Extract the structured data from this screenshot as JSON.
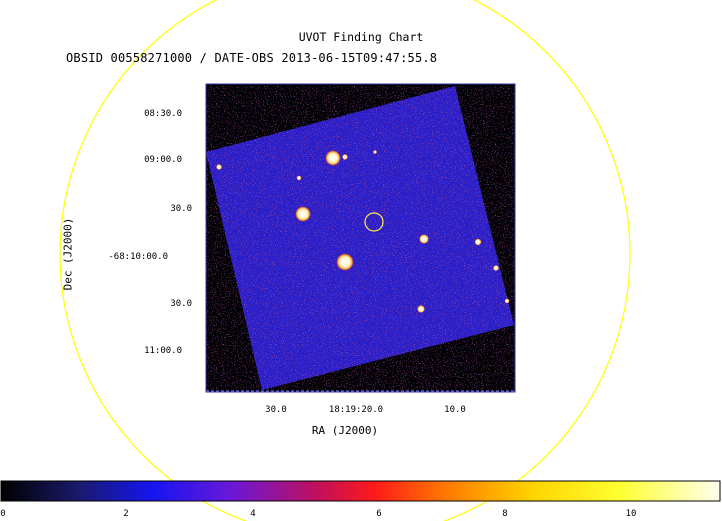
{
  "figure": {
    "title": "UVOT Finding Chart",
    "subtitle": "OBSID 00558271000 / DATE-OBS 2013-06-15T09:47:55.8",
    "ylabel": "Dec (J2000)",
    "xlabel": "RA (J2000)",
    "y_ticks": [
      "08:30.0",
      "09:00.0",
      "30.0",
      "-68:10:00.0",
      "30.0",
      "11:00.0"
    ],
    "x_ticks": [
      "30.0",
      "18:19:20.0",
      "10.0"
    ],
    "colorbar_ticks": [
      "0",
      "2",
      "4",
      "6",
      "8",
      "10"
    ],
    "colors": {
      "field_circle": "#ffff00",
      "target_circle": "#ffee44",
      "image_background": "#2a1ec8",
      "frame_border": "#3333aa"
    }
  }
}
